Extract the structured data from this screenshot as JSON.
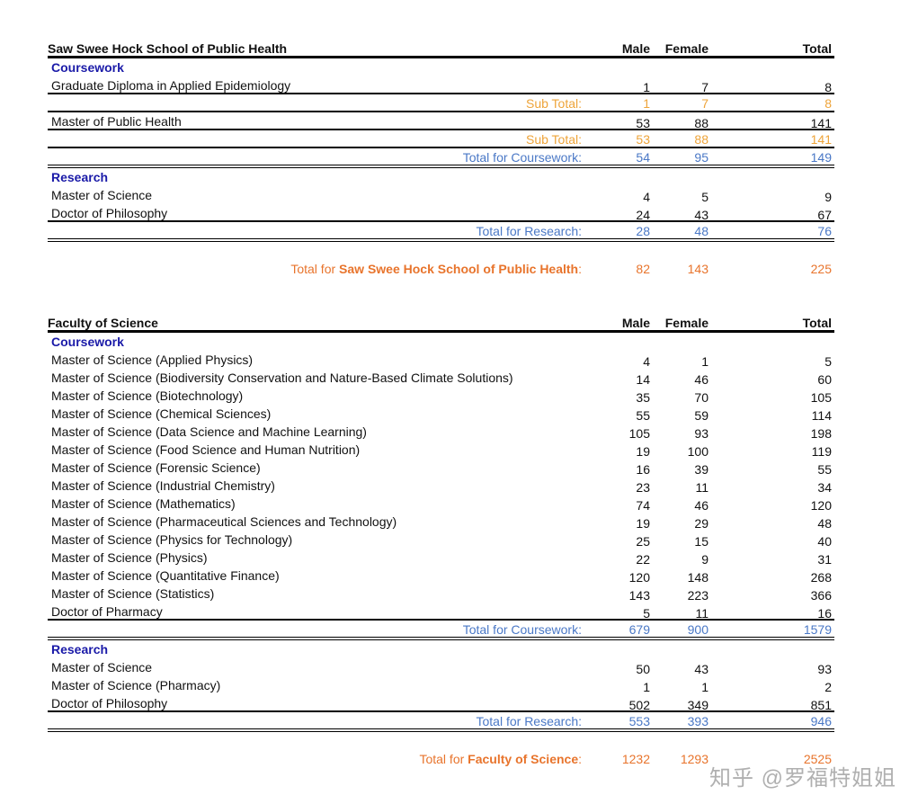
{
  "watermark": "知乎 @罗福特姐姐",
  "blocks": [
    {
      "header": {
        "title": "Saw Swee Hock School of Public Health",
        "male": "Male",
        "female": "Female",
        "total": "Total"
      },
      "rows": [
        {
          "type": "sec",
          "label": "Coursework"
        },
        {
          "type": "item",
          "label": "Graduate Diploma in Applied Epidemiology",
          "male": "1",
          "female": "7",
          "total": "8"
        },
        {
          "type": "sub",
          "label": "Sub Total:",
          "male": "1",
          "female": "7",
          "total": "8"
        },
        {
          "type": "item",
          "label": "Master of Public Health",
          "male": "53",
          "female": "88",
          "total": "141"
        },
        {
          "type": "sub",
          "label": "Sub Total:",
          "male": "53",
          "female": "88",
          "total": "141"
        },
        {
          "type": "tot",
          "label": "Total for Coursework:",
          "male": "54",
          "female": "95",
          "total": "149"
        },
        {
          "type": "sec",
          "label": "Research"
        },
        {
          "type": "item",
          "label": "Master of Science",
          "male": "4",
          "female": "5",
          "total": "9"
        },
        {
          "type": "item",
          "label": "Doctor of Philosophy",
          "male": "24",
          "female": "43",
          "total": "67"
        },
        {
          "type": "tot",
          "label": "Total for Research:",
          "male": "28",
          "female": "48",
          "total": "76"
        }
      ],
      "grand": {
        "prefix": "Total for ",
        "name": "Saw Swee Hock School of Public Health",
        "suffix": ":",
        "male": "82",
        "female": "143",
        "total": "225"
      }
    },
    {
      "header": {
        "title": "Faculty of Science",
        "male": "Male",
        "female": "Female",
        "total": "Total"
      },
      "rows": [
        {
          "type": "sec",
          "label": "Coursework"
        },
        {
          "type": "item",
          "label": "Master of Science (Applied Physics)",
          "male": "4",
          "female": "1",
          "total": "5"
        },
        {
          "type": "item",
          "label": "Master of Science (Biodiversity Conservation and Nature-Based Climate Solutions)",
          "male": "14",
          "female": "46",
          "total": "60"
        },
        {
          "type": "item",
          "label": "Master of Science (Biotechnology)",
          "male": "35",
          "female": "70",
          "total": "105"
        },
        {
          "type": "item",
          "label": "Master of Science (Chemical Sciences)",
          "male": "55",
          "female": "59",
          "total": "114"
        },
        {
          "type": "item",
          "label": "Master of Science (Data Science and Machine Learning)",
          "male": "105",
          "female": "93",
          "total": "198"
        },
        {
          "type": "item",
          "label": "Master of Science (Food Science and Human Nutrition)",
          "male": "19",
          "female": "100",
          "total": "119"
        },
        {
          "type": "item",
          "label": "Master of Science (Forensic Science)",
          "male": "16",
          "female": "39",
          "total": "55"
        },
        {
          "type": "item",
          "label": "Master of Science (Industrial Chemistry)",
          "male": "23",
          "female": "11",
          "total": "34"
        },
        {
          "type": "item",
          "label": "Master of Science (Mathematics)",
          "male": "74",
          "female": "46",
          "total": "120"
        },
        {
          "type": "item",
          "label": "Master of Science (Pharmaceutical Sciences and Technology)",
          "male": "19",
          "female": "29",
          "total": "48"
        },
        {
          "type": "item",
          "label": "Master of Science (Physics for Technology)",
          "male": "25",
          "female": "15",
          "total": "40"
        },
        {
          "type": "item",
          "label": "Master of Science (Physics)",
          "male": "22",
          "female": "9",
          "total": "31"
        },
        {
          "type": "item",
          "label": "Master of Science (Quantitative Finance)",
          "male": "120",
          "female": "148",
          "total": "268"
        },
        {
          "type": "item",
          "label": "Master of Science (Statistics)",
          "male": "143",
          "female": "223",
          "total": "366"
        },
        {
          "type": "item",
          "label": "Doctor of Pharmacy",
          "male": "5",
          "female": "11",
          "total": "16"
        },
        {
          "type": "tot",
          "label": "Total for Coursework:",
          "male": "679",
          "female": "900",
          "total": "1579"
        },
        {
          "type": "sec",
          "label": "Research"
        },
        {
          "type": "item",
          "label": "Master of Science",
          "male": "50",
          "female": "43",
          "total": "93"
        },
        {
          "type": "item",
          "label": "Master of Science (Pharmacy)",
          "male": "1",
          "female": "1",
          "total": "2"
        },
        {
          "type": "item",
          "label": "Doctor of Philosophy",
          "male": "502",
          "female": "349",
          "total": "851"
        },
        {
          "type": "tot",
          "label": "Total for Research:",
          "male": "553",
          "female": "393",
          "total": "946"
        }
      ],
      "grand": {
        "prefix": "Total for ",
        "name": "Faculty of Science",
        "suffix": ":",
        "male": "1232",
        "female": "1293",
        "total": "2525"
      }
    }
  ]
}
